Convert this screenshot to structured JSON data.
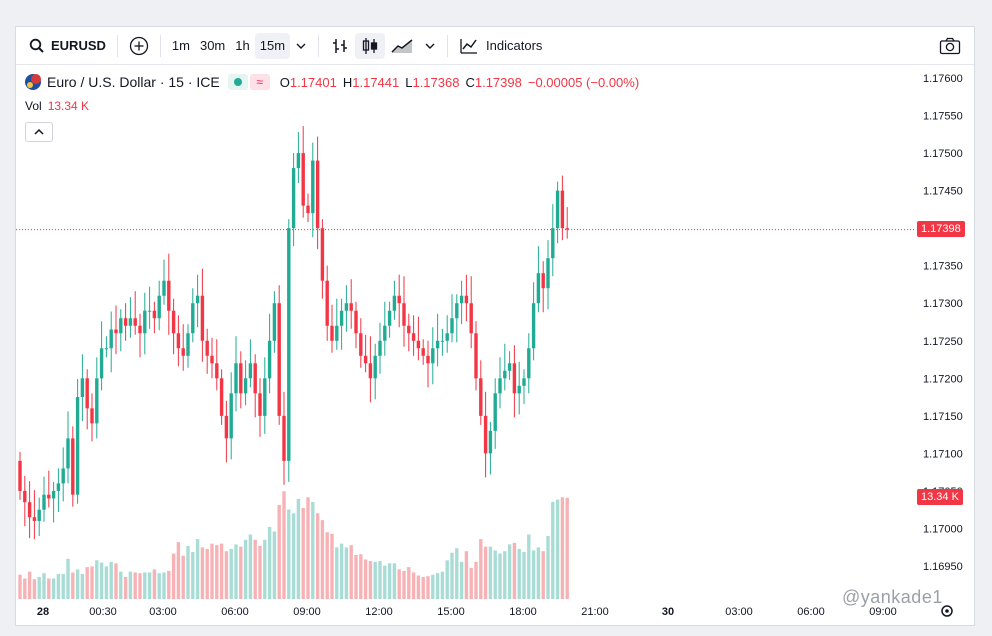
{
  "toolbar": {
    "symbol": "EURUSD",
    "intervals": [
      "1m",
      "30m",
      "1h",
      "15m"
    ],
    "active_interval": "15m",
    "indicators_label": "Indicators"
  },
  "legend": {
    "title": "Euro / U.S. Dollar · 15 · ICE",
    "open_label": "O",
    "open": "1.17401",
    "high_label": "H",
    "high": "1.17441",
    "low_label": "L",
    "low": "1.17368",
    "close_label": "C",
    "close": "1.17398",
    "change": "−0.00005 (−0.00%)"
  },
  "volume": {
    "label": "Vol",
    "value": "13.34 K"
  },
  "price_tag": "1.17398",
  "volume_tag": "13.34 K",
  "watermark": "@yankade1",
  "colors": {
    "up": "#22ab94",
    "down": "#f23645",
    "up_vol": "#a9dcd4",
    "down_vol": "#f7b2b5"
  },
  "chart_data": {
    "type": "candlestick",
    "title": "Euro / U.S. Dollar · 15 · ICE",
    "y_range": [
      1.1693,
      1.1762
    ],
    "y_ticks": [
      "1.17600",
      "1.17550",
      "1.17500",
      "1.17450",
      "1.17400",
      "1.17350",
      "1.17300",
      "1.17250",
      "1.17200",
      "1.17150",
      "1.17100",
      "1.17050",
      "1.17000",
      "1.16950"
    ],
    "x_ticks": [
      "28",
      "00:30",
      "03:00",
      "06:00",
      "09:00",
      "12:00",
      "15:00",
      "18:00",
      "21:00",
      "30",
      "03:00",
      "06:00",
      "09:00"
    ],
    "last_close": 1.17398,
    "last_volume_k": 13.34,
    "closes": [
      1.1705,
      1.17035,
      1.17015,
      1.1701,
      1.17025,
      1.17045,
      1.1704,
      1.1705,
      1.1706,
      1.1708,
      1.1712,
      1.17045,
      1.17175,
      1.172,
      1.1716,
      1.1714,
      1.172,
      1.1724,
      1.1724,
      1.17265,
      1.1726,
      1.1728,
      1.1727,
      1.1728,
      1.1727,
      1.1726,
      1.1729,
      1.1729,
      1.1728,
      1.1731,
      1.1733,
      1.1729,
      1.1726,
      1.1724,
      1.1723,
      1.1726,
      1.173,
      1.1731,
      1.1725,
      1.1723,
      1.1722,
      1.172,
      1.1715,
      1.1712,
      1.1718,
      1.1722,
      1.1718,
      1.172,
      1.1722,
      1.1718,
      1.1715,
      1.172,
      1.1725,
      1.173,
      1.1715,
      1.1709,
      1.174,
      1.1748,
      1.175,
      1.1743,
      1.1742,
      1.1749,
      1.174,
      1.1733,
      1.1727,
      1.1725,
      1.1727,
      1.1729,
      1.173,
      1.1729,
      1.1726,
      1.1723,
      1.1722,
      1.172,
      1.1723,
      1.1725,
      1.1727,
      1.1729,
      1.1731,
      1.173,
      1.1727,
      1.1726,
      1.1725,
      1.1724,
      1.1723,
      1.1722,
      1.1724,
      1.1725,
      1.1725,
      1.1726,
      1.1728,
      1.173,
      1.1731,
      1.173,
      1.1726,
      1.172,
      1.1715,
      1.171,
      1.1713,
      1.1718,
      1.172,
      1.1721,
      1.1722,
      1.1718,
      1.1719,
      1.172,
      1.1724,
      1.173,
      1.1734,
      1.1732,
      1.1736,
      1.174,
      1.1745,
      1.174,
      1.17398
    ],
    "volumes_k": [
      3.2,
      2.7,
      3.6,
      2.6,
      2.9,
      3.4,
      2.7,
      2.7,
      3.3,
      3.3,
      5.3,
      3.5,
      3.9,
      3.3,
      4.2,
      4.3,
      5.1,
      4.8,
      4.3,
      4.9,
      4.7,
      3.6,
      2.9,
      3.6,
      3.5,
      3.4,
      3.5,
      3.5,
      3.9,
      3.4,
      3.5,
      3.7,
      6.0,
      7.5,
      5.7,
      7.0,
      6.2,
      7.9,
      6.8,
      6.6,
      7.3,
      7.1,
      7.3,
      6.3,
      6.6,
      7.2,
      6.9,
      7.8,
      8.5,
      7.8,
      7.0,
      7.8,
      9.5,
      8.9,
      12.4,
      14.2,
      11.8,
      11.3,
      13.2,
      12.0,
      13.4,
      12.8,
      11.3,
      10.4,
      8.8,
      8.6,
      6.8,
      7.3,
      6.8,
      7.1,
      5.8,
      5.9,
      5.2,
      5.0,
      4.9,
      5.0,
      4.4,
      4.7,
      4.7,
      3.9,
      3.7,
      4.2,
      3.5,
      3.1,
      2.9,
      3.0,
      3.2,
      3.4,
      3.6,
      5.1,
      6.1,
      6.7,
      4.9,
      6.3,
      4.1,
      4.9,
      7.9,
      6.9,
      6.9,
      6.4,
      6.0,
      6.3,
      7.2,
      7.4,
      6.6,
      6.2,
      8.5,
      6.4,
      6.8,
      6.3,
      8.3,
      12.8,
      13.1,
      13.4,
      13.34
    ]
  }
}
